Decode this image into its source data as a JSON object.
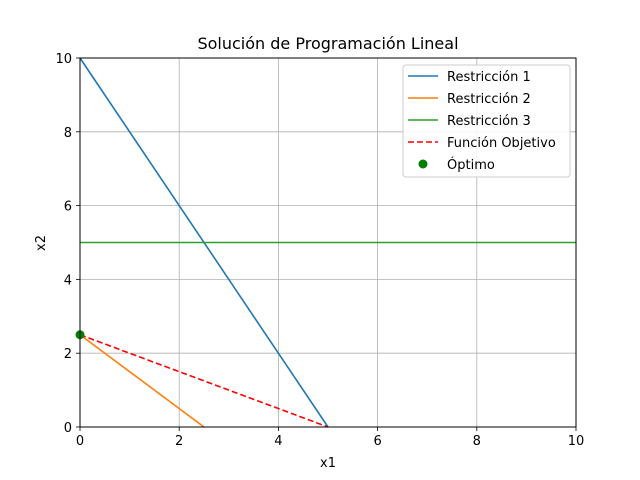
{
  "chart_data": {
    "type": "line",
    "title": "Solución de Programación Lineal",
    "xlabel": "x1",
    "ylabel": "x2",
    "xlim": [
      0,
      10
    ],
    "ylim": [
      0,
      10
    ],
    "xticks": [
      0,
      2,
      4,
      6,
      8,
      10
    ],
    "yticks": [
      0,
      2,
      4,
      6,
      8,
      10
    ],
    "grid": true,
    "legend_position": "top-right",
    "series": [
      {
        "name": "Restricción 1",
        "color": "#1f77b4",
        "style": "solid",
        "x": [
          0,
          5
        ],
        "y": [
          10,
          0
        ]
      },
      {
        "name": "Restricción 2",
        "color": "#ff7f0e",
        "style": "solid",
        "x": [
          0,
          2.5
        ],
        "y": [
          2.5,
          0
        ]
      },
      {
        "name": "Restricción 3",
        "color": "#2ca02c",
        "style": "solid",
        "x": [
          0,
          10
        ],
        "y": [
          5,
          5
        ]
      },
      {
        "name": "Función Objetivo",
        "color": "#ff0000",
        "style": "dashed",
        "x": [
          0,
          5
        ],
        "y": [
          2.5,
          0
        ]
      }
    ],
    "points": [
      {
        "name": "Óptimo",
        "color": "#008000",
        "x": 0,
        "y": 2.5
      }
    ]
  }
}
